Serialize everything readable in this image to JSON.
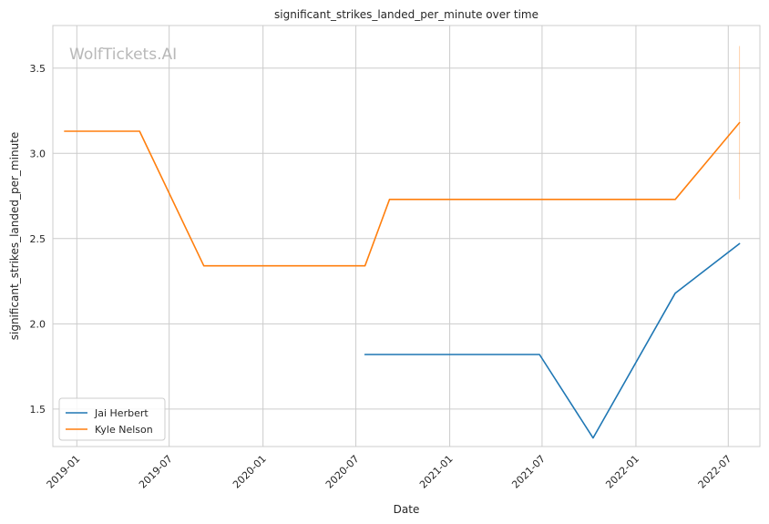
{
  "chart_data": {
    "type": "line",
    "title": "significant_strikes_landed_per_minute over time",
    "xlabel": "Date",
    "ylabel": "significant_strikes_landed_per_minute",
    "watermark": "WolfTickets.AI",
    "x_axis_type": "date",
    "xlim": [
      "2018-11-15",
      "2022-09-01"
    ],
    "ylim": [
      1.28,
      3.75
    ],
    "x_ticks": [
      "2019-01-01",
      "2019-07-01",
      "2020-01-01",
      "2020-07-01",
      "2021-01-01",
      "2021-07-01",
      "2022-01-01",
      "2022-07-01"
    ],
    "x_tick_labels": [
      "2019-01",
      "2019-07",
      "2020-01",
      "2020-07",
      "2021-01",
      "2021-07",
      "2022-01",
      "2022-07"
    ],
    "y_ticks": [
      1.5,
      2.0,
      2.5,
      3.0,
      3.5
    ],
    "y_tick_labels": [
      "1.5",
      "2.0",
      "2.5",
      "3.0",
      "3.5"
    ],
    "grid": true,
    "legend_position": "lower-left",
    "series": [
      {
        "name": "Jai Herbert",
        "color": "#1f77b4",
        "x": [
          "2020-07-19",
          "2021-06-26",
          "2021-10-09",
          "2022-03-19",
          "2022-07-23"
        ],
        "y": [
          1.82,
          1.82,
          1.33,
          2.18,
          2.47
        ]
      },
      {
        "name": "Kyle Nelson",
        "color": "#ff7f0e",
        "x": [
          "2018-12-08",
          "2019-05-04",
          "2019-09-07",
          "2020-07-19",
          "2020-09-05",
          "2022-03-19",
          "2022-07-23"
        ],
        "y": [
          3.13,
          3.13,
          2.34,
          2.34,
          2.73,
          2.73,
          3.18
        ]
      }
    ],
    "error_band": {
      "series": "Kyle Nelson",
      "x": "2022-07-23",
      "y_low": 2.73,
      "y_high": 3.63
    }
  }
}
